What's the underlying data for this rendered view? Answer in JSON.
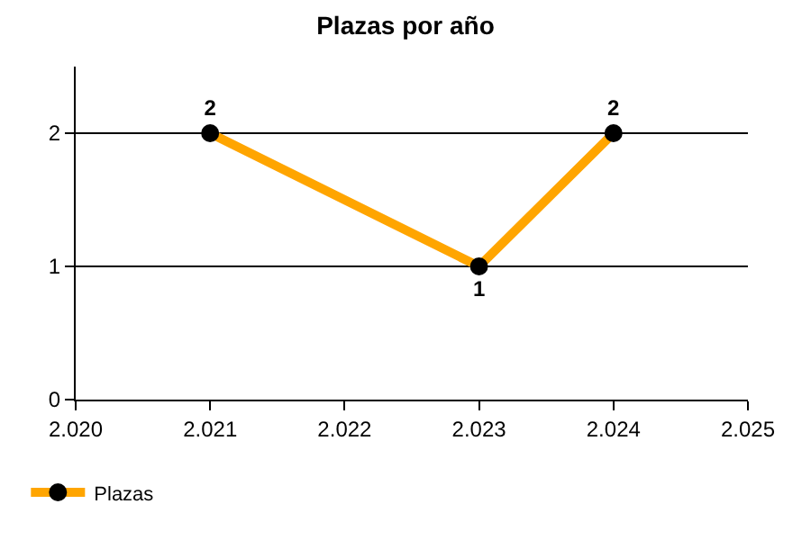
{
  "chart_data": {
    "type": "line",
    "title": "Plazas por año",
    "x": [
      2021,
      2023,
      2024
    ],
    "series": [
      {
        "name": "Plazas",
        "color": "#ffa500",
        "values": [
          2,
          1,
          2
        ]
      }
    ],
    "xlim": [
      2020,
      2025
    ],
    "xticks": [
      {
        "value": 2020,
        "label": "2.020"
      },
      {
        "value": 2021,
        "label": "2.021"
      },
      {
        "value": 2022,
        "label": "2.022"
      },
      {
        "value": 2023,
        "label": "2.023"
      },
      {
        "value": 2024,
        "label": "2.024"
      },
      {
        "value": 2025,
        "label": "2.025"
      }
    ],
    "ylim": [
      0,
      2.5
    ],
    "yticks": [
      0,
      1,
      2
    ],
    "grid": "y",
    "legend": "bottom left",
    "marker": "circle",
    "line_style": "solid",
    "data_labels": true
  }
}
